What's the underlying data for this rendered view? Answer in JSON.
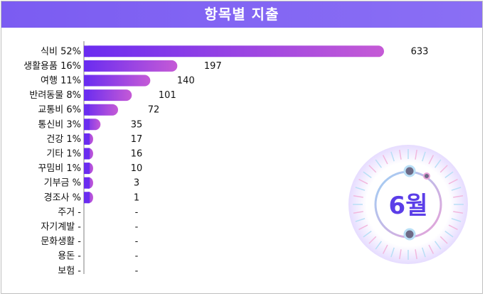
{
  "title": "항목별 지출",
  "badge": {
    "month": "6월"
  },
  "colors": {
    "header": "#7b5cf2",
    "bar_start": "#6a2cf0",
    "bar_end": "#c55ad6",
    "axis": "#7f7f7f"
  },
  "chart_data": {
    "type": "bar",
    "orientation": "horizontal",
    "title": "항목별 지출",
    "categories": [
      "식비 52%",
      "생활용품 16%",
      "여행 11%",
      "반려동물 8%",
      "교통비 6%",
      "통신비 3%",
      "건강 1%",
      "기타 1%",
      "꾸밈비 1%",
      "기부금 %",
      "경조사 %",
      "주거 -",
      "자기계발 -",
      "문화생활 -",
      "용돈 -",
      "보험 -"
    ],
    "value_labels": [
      "633",
      "197",
      "140",
      "101",
      "72",
      "35",
      "17",
      "16",
      "10",
      "3",
      "1",
      "-",
      "-",
      "-",
      "-",
      "-"
    ],
    "values": [
      633,
      197,
      140,
      101,
      72,
      35,
      17,
      16,
      10,
      3,
      1,
      0,
      0,
      0,
      0,
      0
    ]
  }
}
